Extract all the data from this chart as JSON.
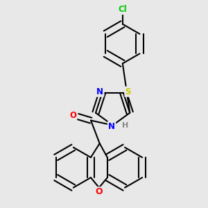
{
  "background_color": "#e8e8e8",
  "bond_color": "#000000",
  "atom_colors": {
    "Cl": "#00cc00",
    "N": "#0000ff",
    "S": "#cccc00",
    "O": "#ff0000",
    "H": "#888888"
  },
  "bond_width": 1.5,
  "figsize": [
    3.0,
    3.0
  ],
  "dpi": 100
}
